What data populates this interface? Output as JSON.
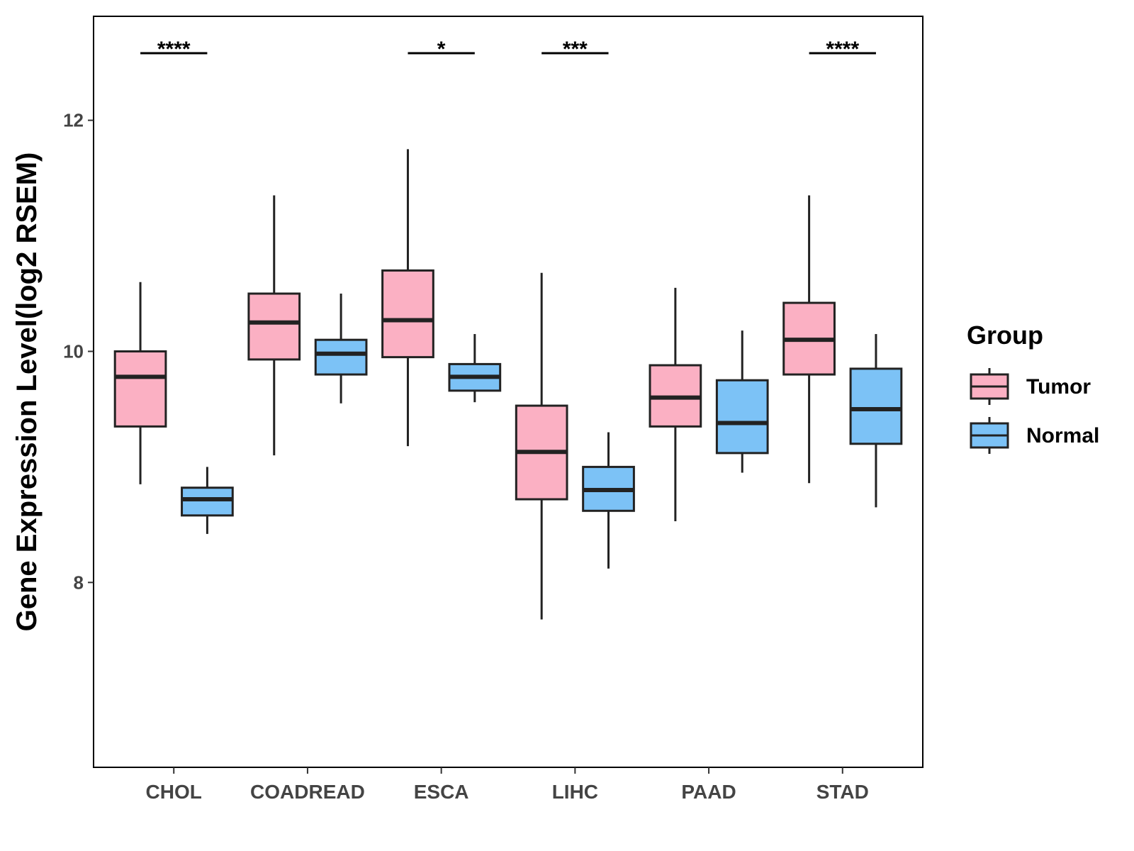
{
  "chart_data": {
    "type": "boxplot",
    "title": "",
    "xlabel": "",
    "ylabel": "Gene Expression Level(log2 RSEM)",
    "ylim": [
      6.4,
      12.9
    ],
    "yticks": [
      8,
      10,
      12
    ],
    "grid": false,
    "legend": {
      "title": "Group",
      "position": "right",
      "entries": [
        {
          "name": "Tumor",
          "color": "#FBB0C3"
        },
        {
          "name": "Normal",
          "color": "#7CC2F6"
        }
      ]
    },
    "categories": [
      "CHOL",
      "COADREAD",
      "ESCA",
      "LIHC",
      "PAAD",
      "STAD"
    ],
    "series": [
      {
        "name": "Tumor",
        "color": "#FBB0C3",
        "boxes": [
          {
            "min": 8.85,
            "q1": 9.35,
            "median": 9.78,
            "q3": 10.0,
            "max": 10.6
          },
          {
            "min": 9.1,
            "q1": 9.93,
            "median": 10.25,
            "q3": 10.5,
            "max": 11.35
          },
          {
            "min": 9.18,
            "q1": 9.95,
            "median": 10.27,
            "q3": 10.7,
            "max": 11.75
          },
          {
            "min": 7.68,
            "q1": 8.72,
            "median": 9.13,
            "q3": 9.53,
            "max": 10.68
          },
          {
            "min": 8.53,
            "q1": 9.35,
            "median": 9.6,
            "q3": 9.88,
            "max": 10.55
          },
          {
            "min": 8.86,
            "q1": 9.8,
            "median": 10.1,
            "q3": 10.42,
            "max": 11.35
          }
        ]
      },
      {
        "name": "Normal",
        "color": "#7CC2F6",
        "boxes": [
          {
            "min": 8.42,
            "q1": 8.58,
            "median": 8.72,
            "q3": 8.82,
            "max": 9.0
          },
          {
            "min": 9.55,
            "q1": 9.8,
            "median": 9.98,
            "q3": 10.1,
            "max": 10.5
          },
          {
            "min": 9.56,
            "q1": 9.66,
            "median": 9.78,
            "q3": 9.89,
            "max": 10.15
          },
          {
            "min": 8.12,
            "q1": 8.62,
            "median": 8.8,
            "q3": 9.0,
            "max": 9.3
          },
          {
            "min": 8.95,
            "q1": 9.12,
            "median": 9.38,
            "q3": 9.75,
            "max": 10.18
          },
          {
            "min": 8.65,
            "q1": 9.2,
            "median": 9.5,
            "q3": 9.85,
            "max": 10.15
          }
        ]
      }
    ],
    "significance": [
      {
        "category": "CHOL",
        "label": "****"
      },
      {
        "category": "ESCA",
        "label": "*"
      },
      {
        "category": "LIHC",
        "label": "***"
      },
      {
        "category": "STAD",
        "label": "****"
      }
    ]
  }
}
